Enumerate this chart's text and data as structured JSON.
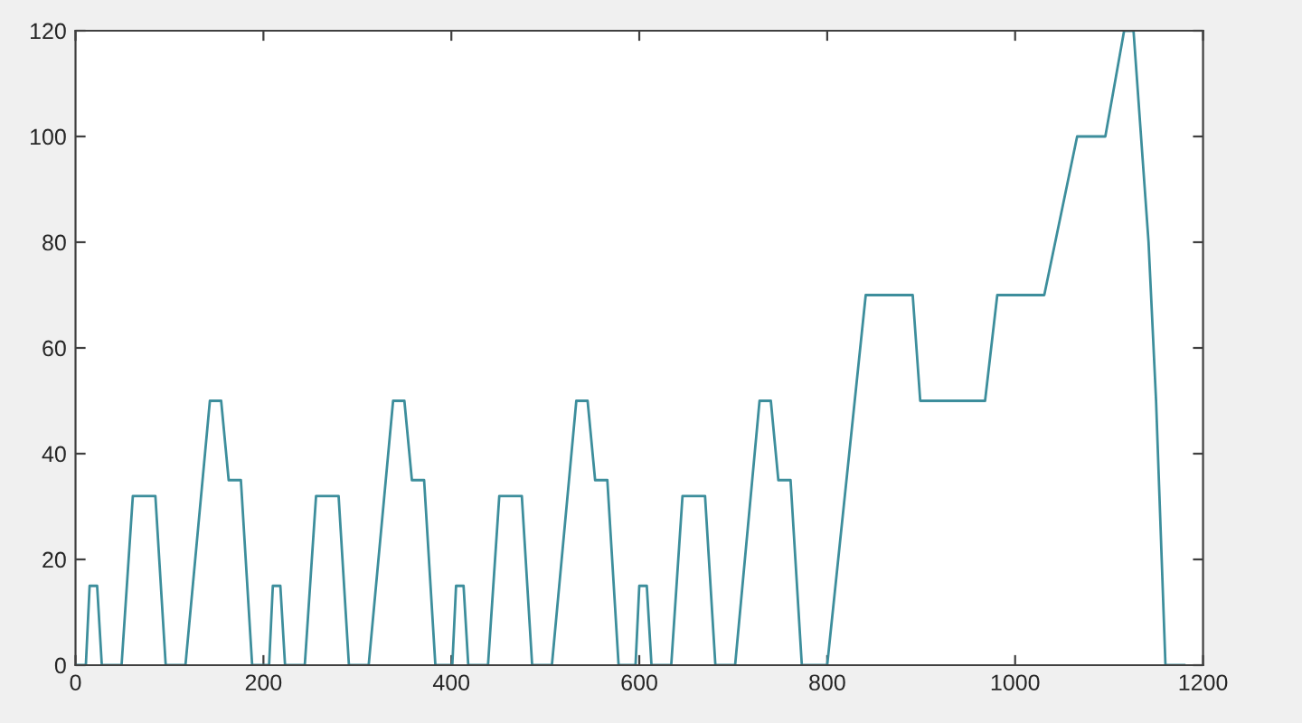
{
  "chart_data": {
    "type": "line",
    "x": [
      0,
      11,
      15,
      23,
      28,
      49,
      61,
      85,
      96,
      117,
      143,
      155,
      163,
      176,
      188,
      195,
      206,
      210,
      218,
      223,
      244,
      256,
      280,
      291,
      312,
      338,
      350,
      358,
      371,
      383,
      390,
      401,
      405,
      413,
      418,
      439,
      451,
      475,
      486,
      507,
      533,
      545,
      553,
      566,
      578,
      585,
      596,
      600,
      608,
      613,
      634,
      646,
      670,
      681,
      702,
      728,
      740,
      748,
      761,
      773,
      780,
      800,
      841,
      891,
      899,
      968,
      981,
      1031,
      1066,
      1096,
      1116,
      1126,
      1142,
      1150,
      1160,
      1180
    ],
    "series": [
      {
        "color": "#3d8e9c",
        "values": [
          0,
          0,
          15,
          15,
          0,
          0,
          32,
          32,
          0,
          0,
          50,
          50,
          35,
          35,
          0,
          0,
          0,
          15,
          15,
          0,
          0,
          32,
          32,
          0,
          0,
          50,
          50,
          35,
          35,
          0,
          0,
          0,
          15,
          15,
          0,
          0,
          32,
          32,
          0,
          0,
          50,
          50,
          35,
          35,
          0,
          0,
          0,
          15,
          15,
          0,
          0,
          32,
          32,
          0,
          0,
          50,
          50,
          35,
          35,
          0,
          0,
          0,
          70,
          70,
          50,
          50,
          70,
          70,
          100,
          100,
          120,
          120,
          80,
          50,
          0,
          0
        ]
      }
    ],
    "xlim": [
      0,
      1200
    ],
    "ylim": [
      0,
      120
    ],
    "xticks": [
      0,
      200,
      400,
      600,
      800,
      1000,
      1200
    ],
    "yticks": [
      0,
      20,
      40,
      60,
      80,
      100,
      120
    ],
    "grid": false
  }
}
